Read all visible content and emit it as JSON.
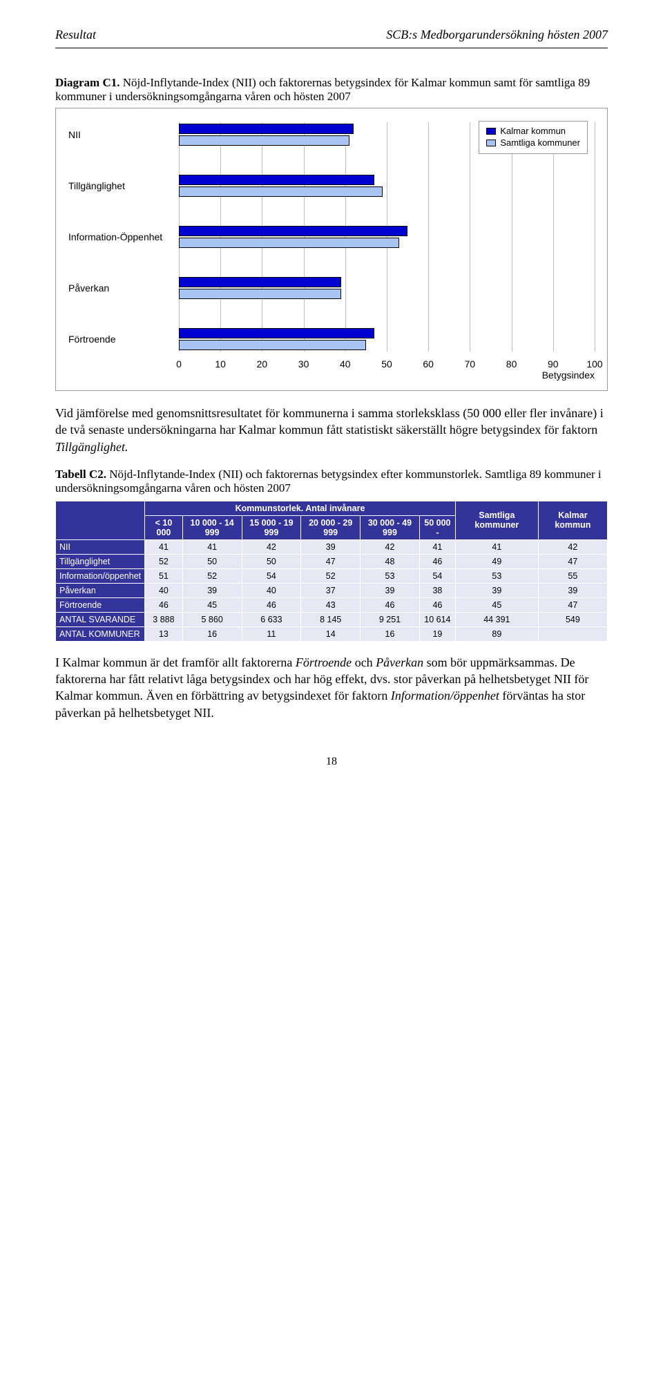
{
  "header": {
    "left": "Resultat",
    "right": "SCB:s Medborgarundersökning hösten 2007"
  },
  "diagram": {
    "label": "Diagram C1.",
    "caption": "Nöjd-Inflytande-Index (NII) och faktorernas betygsindex för Kalmar kommun samt för samtliga 89 kommuner i undersökningsomgångarna våren och hösten 2007",
    "chart": {
      "type": "bar",
      "categories": [
        "NII",
        "Tillgänglighet",
        "Information-Öppenhet",
        "Påverkan",
        "Förtroende"
      ],
      "series": [
        {
          "name": "Kalmar kommun",
          "color": "#0000d1",
          "values": [
            42,
            47,
            55,
            39,
            47
          ]
        },
        {
          "name": "Samtliga kommuner",
          "color": "#a7c4f2",
          "values": [
            41,
            49,
            53,
            39,
            45
          ]
        }
      ],
      "xlim": [
        0,
        100
      ],
      "xtick_step": 10,
      "xaxis_title": "Betygsindex",
      "grid_color": "#bfbfbf",
      "cat_fontsize": 14,
      "tick_fontsize": 14,
      "border_color": "#999999",
      "bg_color": "#ffffff"
    }
  },
  "para1": {
    "pre": "Vid jämförelse med genomsnittsresultatet för kommunerna i samma storleksklass (50 000 eller fler invånare) i de två senaste undersökningarna har Kalmar kommun fått statistiskt säkerställt högre betygsindex för faktorn ",
    "ital": "Tillgänglighet.",
    "post": ""
  },
  "table": {
    "label": "Tabell C2.",
    "caption": "Nöjd-Inflytande-Index (NII) och faktorernas betygsindex efter kommunstorlek. Samtliga 89 kommuner i undersökningsomgångarna våren och hösten 2007",
    "head_group": "Kommunstorlek. Antal invånare",
    "head_samtliga": "Samtliga kommuner",
    "head_kalmar": "Kalmar kommun",
    "size_cols": [
      "< 10 000",
      "10 000 - 14 999",
      "15 000 - 19 999",
      "20 000 - 29 999",
      "30 000 - 49 999",
      "50 000 -"
    ],
    "rows": [
      {
        "name": "NII",
        "vals": [
          "41",
          "41",
          "42",
          "39",
          "42",
          "41",
          "41",
          "42"
        ]
      },
      {
        "name": "Tillgänglighet",
        "vals": [
          "52",
          "50",
          "50",
          "47",
          "48",
          "46",
          "49",
          "47"
        ]
      },
      {
        "name": "Information/öppenhet",
        "vals": [
          "51",
          "52",
          "54",
          "52",
          "53",
          "54",
          "53",
          "55"
        ]
      },
      {
        "name": "Påverkan",
        "vals": [
          "40",
          "39",
          "40",
          "37",
          "39",
          "38",
          "39",
          "39"
        ]
      },
      {
        "name": "Förtroende",
        "vals": [
          "46",
          "45",
          "46",
          "43",
          "46",
          "46",
          "45",
          "47"
        ]
      },
      {
        "name": "ANTAL SVARANDE",
        "vals": [
          "3 888",
          "5 860",
          "6 633",
          "8 145",
          "9 251",
          "10 614",
          "44 391",
          "549"
        ]
      },
      {
        "name": "ANTAL KOMMUNER",
        "vals": [
          "13",
          "16",
          "11",
          "14",
          "16",
          "19",
          "89",
          ""
        ]
      }
    ],
    "head_bg": "#333399",
    "head_fg": "#ffffff",
    "cell_bg": "#e8e8f4"
  },
  "para2": {
    "t1": "I Kalmar kommun är det framför allt faktorerna ",
    "i1": "Förtroende",
    "t2": " och ",
    "i2": "Påverkan",
    "t3": " som bör uppmärksammas. De faktorerna har fått relativt låga betygsindex och har hög effekt, dvs. stor påverkan på helhetsbetyget NII för Kalmar kommun. Även en förbättring av betygsindexet för faktorn ",
    "i3": "Information/öppenhet",
    "t4": " förväntas ha stor påverkan på helhetsbetyget NII."
  },
  "page_num": "18"
}
